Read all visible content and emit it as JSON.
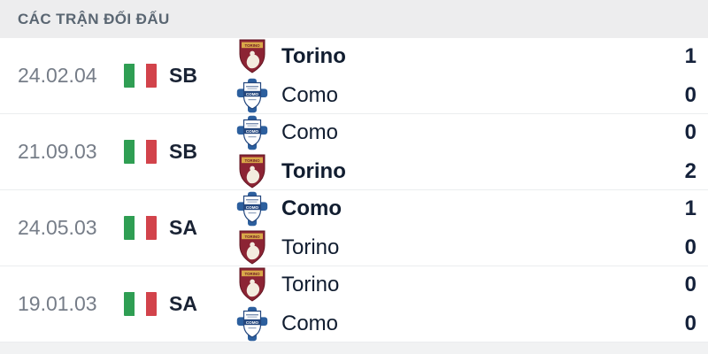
{
  "header": {
    "title": "CÁC TRẬN ĐỐI ĐẤU"
  },
  "flag": {
    "name": "italy-flag",
    "colors": [
      "#2f9e53",
      "#ffffff",
      "#d2434b"
    ]
  },
  "icons": {
    "torino": "torino-club-badge",
    "como": "como-club-badge"
  },
  "badge_text": {
    "torino": "TORINO",
    "como": "COMO"
  },
  "colors": {
    "header_bg": "#ededee",
    "header_text": "#5a6672",
    "date_text": "#767d88",
    "dark_text": "#111d30",
    "row_border": "#ebedef",
    "torino_maroon": "#8c2434",
    "torino_gold": "#d9a849",
    "como_blue": "#2c5f9e",
    "como_navy": "#24477e"
  },
  "matches": [
    {
      "date": "24.02.04",
      "competition": "SB",
      "team1": {
        "name": "Torino",
        "score": "1",
        "winner": true,
        "badge": "torino"
      },
      "team2": {
        "name": "Como",
        "score": "0",
        "winner": false,
        "badge": "como"
      }
    },
    {
      "date": "21.09.03",
      "competition": "SB",
      "team1": {
        "name": "Como",
        "score": "0",
        "winner": false,
        "badge": "como"
      },
      "team2": {
        "name": "Torino",
        "score": "2",
        "winner": true,
        "badge": "torino"
      }
    },
    {
      "date": "24.05.03",
      "competition": "SA",
      "team1": {
        "name": "Como",
        "score": "1",
        "winner": true,
        "badge": "como"
      },
      "team2": {
        "name": "Torino",
        "score": "0",
        "winner": false,
        "badge": "torino"
      }
    },
    {
      "date": "19.01.03",
      "competition": "SA",
      "team1": {
        "name": "Torino",
        "score": "0",
        "winner": false,
        "badge": "torino"
      },
      "team2": {
        "name": "Como",
        "score": "0",
        "winner": false,
        "badge": "como"
      }
    }
  ]
}
